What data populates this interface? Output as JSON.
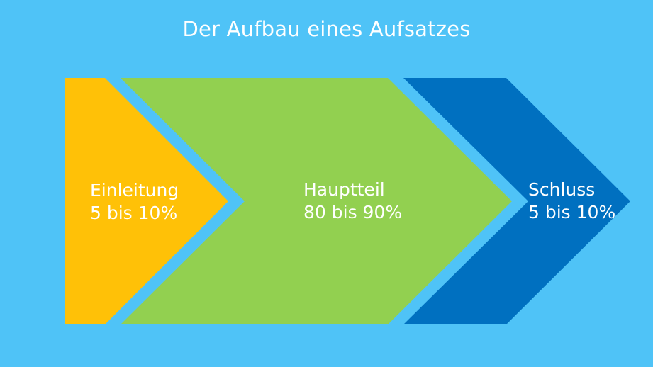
{
  "title": "Der Aufbau eines Aufsatzes",
  "colors": {
    "background": "#4fc3f7",
    "text": "#ffffff"
  },
  "segments": [
    {
      "name": "Einleitung",
      "share": "5 bis 10%",
      "color": "#ffc107"
    },
    {
      "name": "Hauptteil",
      "share": "80 bis 90%",
      "color": "#92d050"
    },
    {
      "name": "Schluss",
      "share": "5 bis 10%",
      "color": "#0070c0"
    }
  ]
}
